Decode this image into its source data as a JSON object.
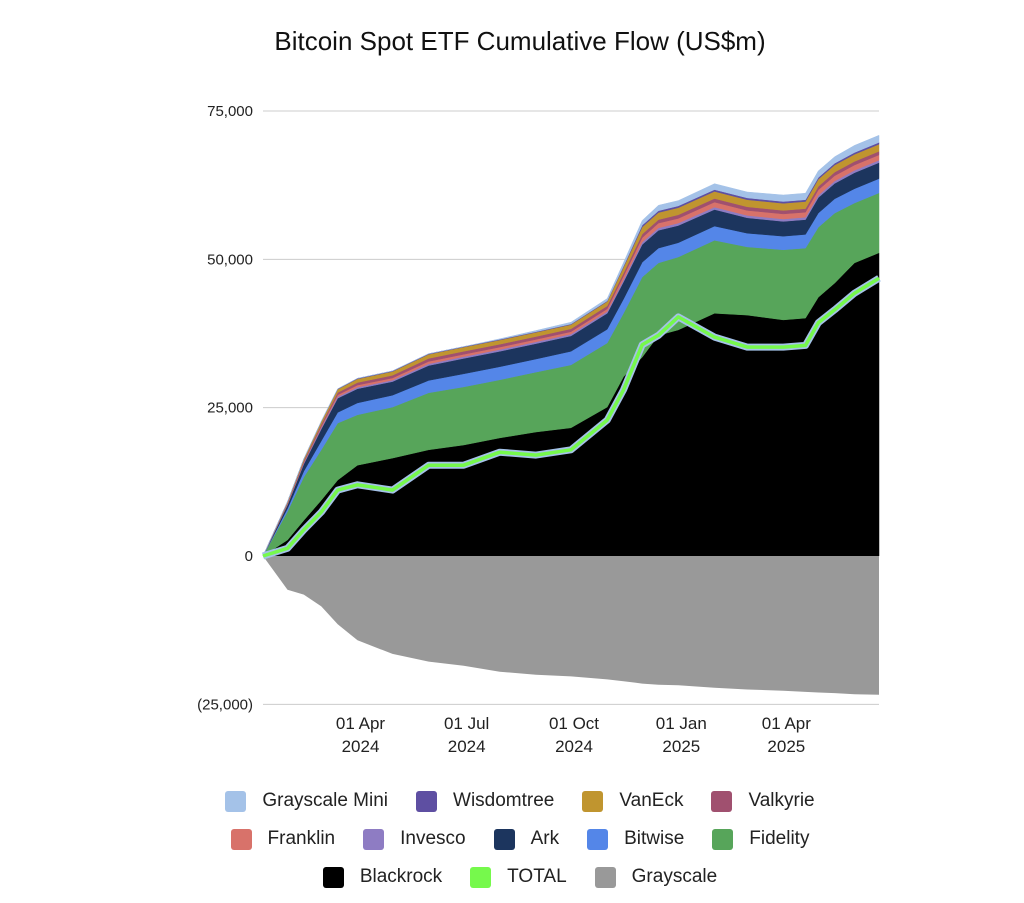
{
  "chart_data": {
    "type": "area",
    "stacked": true,
    "title": "Bitcoin Spot ETF Cumulative Flow (US$m)",
    "xlabel": "",
    "ylabel": "",
    "ylim": [
      -25000,
      75000
    ],
    "yticks": [
      {
        "value": 75000,
        "label": "75,000"
      },
      {
        "value": 50000,
        "label": "50,000"
      },
      {
        "value": 25000,
        "label": "25,000"
      },
      {
        "value": 0,
        "label": "0"
      },
      {
        "value": -25000,
        "label": "(25,000)"
      }
    ],
    "xticks": [
      {
        "date": "2024-04-01",
        "line1": "01 Apr",
        "line2": "2024"
      },
      {
        "date": "2024-07-01",
        "line1": "01 Jul",
        "line2": "2024"
      },
      {
        "date": "2024-10-01",
        "line1": "01 Oct",
        "line2": "2024"
      },
      {
        "date": "2025-01-01",
        "line1": "01 Jan",
        "line2": "2025"
      },
      {
        "date": "2025-04-01",
        "line1": "01 Apr",
        "line2": "2025"
      }
    ],
    "xlim": [
      "2024-01-11",
      "2025-06-22"
    ],
    "grid": true,
    "legend_position": "bottom",
    "x": [
      "2024-01-11",
      "2024-02-01",
      "2024-02-15",
      "2024-03-01",
      "2024-03-15",
      "2024-04-01",
      "2024-05-01",
      "2024-06-01",
      "2024-07-01",
      "2024-08-01",
      "2024-09-01",
      "2024-10-01",
      "2024-11-01",
      "2024-11-15",
      "2024-12-01",
      "2024-12-15",
      "2025-01-01",
      "2025-02-01",
      "2025-03-01",
      "2025-04-01",
      "2025-04-20",
      "2025-05-01",
      "2025-05-15",
      "2025-06-01",
      "2025-06-22"
    ],
    "series": [
      {
        "name": "Blackrock",
        "color": "#000000",
        "kind": "area",
        "values": [
          0,
          2700,
          6000,
          9400,
          12800,
          15300,
          16500,
          17900,
          18700,
          19900,
          20900,
          21600,
          25100,
          30200,
          33500,
          37200,
          38100,
          40900,
          40600,
          39800,
          40100,
          43600,
          46000,
          49400,
          51100
        ]
      },
      {
        "name": "Fidelity",
        "color": "#57a55a",
        "kind": "area",
        "values": [
          0,
          4800,
          7300,
          8500,
          9600,
          8500,
          8600,
          9600,
          9800,
          9800,
          10100,
          10600,
          10800,
          10700,
          13500,
          12200,
          12300,
          12300,
          11500,
          11800,
          11800,
          11800,
          11800,
          10100,
          10100
        ]
      },
      {
        "name": "Bitwise",
        "color": "#5486e8",
        "kind": "area",
        "values": [
          0,
          500,
          1000,
          1500,
          1800,
          2000,
          2000,
          2100,
          2200,
          2200,
          2200,
          2300,
          2300,
          2400,
          2500,
          2500,
          2400,
          2400,
          2300,
          2300,
          2300,
          2400,
          2400,
          2400,
          2400
        ]
      },
      {
        "name": "Ark",
        "color": "#1c355e",
        "kind": "area",
        "values": [
          0,
          600,
          1200,
          2000,
          2400,
          2400,
          2300,
          2500,
          2600,
          2600,
          2600,
          2600,
          2700,
          2900,
          3000,
          3000,
          2900,
          2800,
          2600,
          2500,
          2500,
          2600,
          2600,
          2700,
          2700
        ]
      },
      {
        "name": "Invesco",
        "color": "#8e7cc3",
        "kind": "area",
        "values": [
          0,
          100,
          150,
          200,
          250,
          250,
          250,
          300,
          300,
          300,
          300,
          300,
          300,
          350,
          400,
          400,
          400,
          400,
          400,
          400,
          400,
          400,
          400,
          400,
          400
        ]
      },
      {
        "name": "Franklin",
        "color": "#d8726a",
        "kind": "area",
        "values": [
          0,
          100,
          150,
          250,
          300,
          350,
          350,
          400,
          400,
          400,
          400,
          400,
          450,
          600,
          750,
          800,
          800,
          850,
          850,
          850,
          850,
          900,
          900,
          900,
          900
        ]
      },
      {
        "name": "Valkyrie",
        "color": "#a0506f",
        "kind": "area",
        "values": [
          0,
          150,
          250,
          350,
          400,
          450,
          450,
          500,
          500,
          500,
          500,
          500,
          500,
          550,
          600,
          600,
          600,
          600,
          600,
          600,
          600,
          600,
          600,
          600,
          600
        ]
      },
      {
        "name": "VanEck",
        "color": "#c0952f",
        "kind": "area",
        "values": [
          0,
          200,
          300,
          450,
          550,
          600,
          650,
          700,
          700,
          700,
          700,
          700,
          750,
          950,
          1200,
          1200,
          1200,
          1200,
          1200,
          1200,
          1200,
          1200,
          1200,
          1200,
          1200
        ]
      },
      {
        "name": "Wisdomtree",
        "color": "#5e4fa2",
        "kind": "area",
        "values": [
          0,
          20,
          30,
          60,
          80,
          100,
          100,
          100,
          100,
          100,
          100,
          100,
          100,
          200,
          300,
          300,
          300,
          300,
          300,
          300,
          300,
          300,
          300,
          300,
          300
        ]
      },
      {
        "name": "Grayscale Mini",
        "color": "#a4c2e8",
        "kind": "area",
        "values": [
          0,
          0,
          0,
          0,
          0,
          0,
          0,
          0,
          0,
          100,
          200,
          300,
          400,
          600,
          800,
          900,
          900,
          1000,
          1000,
          1100,
          1100,
          1100,
          1100,
          1200,
          1200
        ]
      },
      {
        "name": "Grayscale",
        "color": "#999999",
        "kind": "area-negative",
        "values": [
          0,
          -5700,
          -6500,
          -8500,
          -11500,
          -14200,
          -16500,
          -17800,
          -18500,
          -19500,
          -20000,
          -20300,
          -20800,
          -21100,
          -21500,
          -21700,
          -21800,
          -22200,
          -22500,
          -22700,
          -22900,
          -23000,
          -23100,
          -23300,
          -23400
        ]
      },
      {
        "name": "TOTAL",
        "color": "#76f94c",
        "kind": "line",
        "values": [
          0,
          1300,
          4400,
          7400,
          11100,
          12000,
          11100,
          15300,
          15300,
          17500,
          17000,
          17900,
          22900,
          28000,
          35600,
          37200,
          40300,
          36900,
          35200,
          35200,
          35500,
          39300,
          41500,
          44300,
          46800
        ]
      }
    ],
    "legend": [
      [
        "Grayscale Mini",
        "Wisdomtree",
        "VanEck",
        "Valkyrie"
      ],
      [
        "Franklin",
        "Invesco",
        "Ark",
        "Bitwise",
        "Fidelity"
      ],
      [
        "Blackrock",
        "TOTAL",
        "Grayscale"
      ]
    ]
  }
}
